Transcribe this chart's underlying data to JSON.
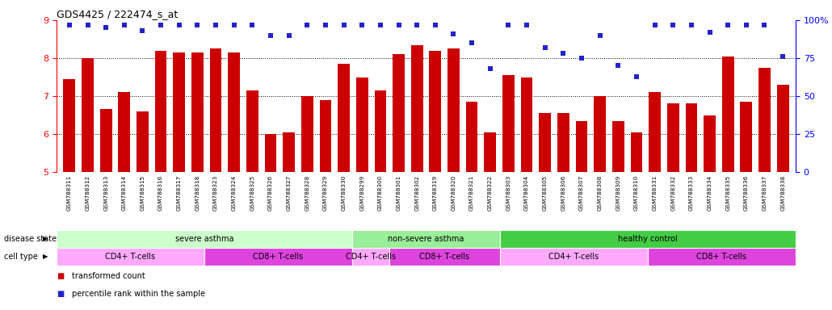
{
  "title": "GDS4425 / 222474_s_at",
  "samples": [
    "GSM788311",
    "GSM788312",
    "GSM788313",
    "GSM788314",
    "GSM788315",
    "GSM788316",
    "GSM788317",
    "GSM788318",
    "GSM788323",
    "GSM788324",
    "GSM788325",
    "GSM788326",
    "GSM788327",
    "GSM788328",
    "GSM788329",
    "GSM788330",
    "GSM788299",
    "GSM788300",
    "GSM788301",
    "GSM788302",
    "GSM788319",
    "GSM788320",
    "GSM788321",
    "GSM788322",
    "GSM788303",
    "GSM788304",
    "GSM788305",
    "GSM788306",
    "GSM788307",
    "GSM788308",
    "GSM788309",
    "GSM788310",
    "GSM788331",
    "GSM788332",
    "GSM788333",
    "GSM788334",
    "GSM788335",
    "GSM788336",
    "GSM788337",
    "GSM788338"
  ],
  "bar_values": [
    7.45,
    8.0,
    6.65,
    7.1,
    6.6,
    8.2,
    8.15,
    8.15,
    8.25,
    8.15,
    7.15,
    6.0,
    6.05,
    7.0,
    6.9,
    7.85,
    7.5,
    7.15,
    8.1,
    8.35,
    8.2,
    8.25,
    6.85,
    6.05,
    7.55,
    7.5,
    6.55,
    6.55,
    6.35,
    7.0,
    6.35,
    6.05,
    7.1,
    6.8,
    6.8,
    6.5,
    8.05,
    6.85,
    7.75,
    7.3
  ],
  "percentile_values": [
    97,
    97,
    95,
    97,
    93,
    97,
    97,
    97,
    97,
    97,
    97,
    90,
    90,
    97,
    97,
    97,
    97,
    97,
    97,
    97,
    97,
    91,
    85,
    68,
    97,
    97,
    82,
    78,
    75,
    90,
    70,
    63,
    97,
    97,
    97,
    92,
    97,
    97,
    97,
    76
  ],
  "bar_color": "#cc0000",
  "dot_color": "#2222cc",
  "ylim_left": [
    5,
    9
  ],
  "ylim_right": [
    0,
    100
  ],
  "yticks_left": [
    5,
    6,
    7,
    8,
    9
  ],
  "yticks_right": [
    0,
    25,
    50,
    75,
    100
  ],
  "disease_states": [
    {
      "label": "severe asthma",
      "start": 0,
      "end": 16,
      "color": "#ccffcc"
    },
    {
      "label": "non-severe asthma",
      "start": 16,
      "end": 24,
      "color": "#99ee99"
    },
    {
      "label": "healthy control",
      "start": 24,
      "end": 40,
      "color": "#44cc44"
    }
  ],
  "cell_types": [
    {
      "label": "CD4+ T-cells",
      "start": 0,
      "end": 8,
      "color": "#ffaaff"
    },
    {
      "label": "CD8+ T-cells",
      "start": 8,
      "end": 16,
      "color": "#dd44dd"
    },
    {
      "label": "CD4+ T-cells",
      "start": 16,
      "end": 18,
      "color": "#ffaaff"
    },
    {
      "label": "CD8+ T-cells",
      "start": 18,
      "end": 24,
      "color": "#dd44dd"
    },
    {
      "label": "CD4+ T-cells",
      "start": 24,
      "end": 32,
      "color": "#ffaaff"
    },
    {
      "label": "CD8+ T-cells",
      "start": 32,
      "end": 40,
      "color": "#dd44dd"
    }
  ],
  "legend_bar_label": "transformed count",
  "legend_dot_label": "percentile rank within the sample",
  "disease_state_label": "disease state",
  "cell_type_label": "cell type",
  "background_color": "#ffffff",
  "xticklabel_bg": "#dddddd"
}
